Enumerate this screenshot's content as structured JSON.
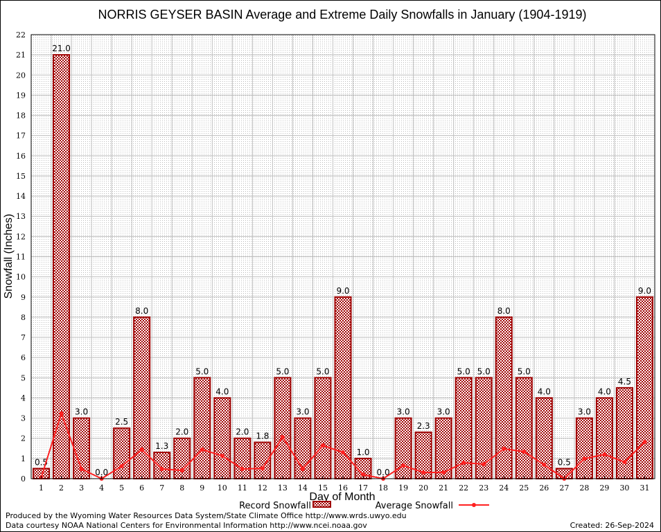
{
  "chart_data": {
    "type": "bar",
    "title": "NORRIS GEYSER BASIN Average and Extreme Daily Snowfalls in January (1904-1919)",
    "xlabel": "Day of Month",
    "ylabel": "Snowfall (Inches)",
    "ylim": [
      0,
      22
    ],
    "yticks": [
      "0",
      "1",
      "2",
      "3",
      "4",
      "5",
      "6",
      "7",
      "8",
      "9",
      "10",
      "11",
      "12",
      "13",
      "14",
      "15",
      "16",
      "17",
      "18",
      "19",
      "20",
      "21",
      "22"
    ],
    "categories": [
      "1",
      "2",
      "3",
      "4",
      "5",
      "6",
      "7",
      "8",
      "9",
      "10",
      "11",
      "12",
      "13",
      "14",
      "15",
      "16",
      "17",
      "18",
      "19",
      "20",
      "21",
      "22",
      "23",
      "24",
      "25",
      "26",
      "27",
      "28",
      "29",
      "30",
      "31"
    ],
    "grid": true,
    "legend_position": "bottom",
    "series": [
      {
        "name": "Record Snowfall",
        "type": "bar",
        "color": "#a00000",
        "values": [
          0.5,
          21.0,
          3.0,
          0.0,
          2.5,
          8.0,
          1.3,
          2.0,
          5.0,
          4.0,
          2.0,
          1.8,
          5.0,
          3.0,
          5.0,
          9.0,
          1.0,
          0.0,
          3.0,
          2.3,
          3.0,
          5.0,
          5.0,
          8.0,
          5.0,
          4.0,
          0.5,
          3.0,
          4.0,
          4.5,
          9.0
        ],
        "labels": [
          "0.5",
          "21.0",
          "3.0",
          "0.0",
          "2.5",
          "8.0",
          "1.3",
          "2.0",
          "5.0",
          "4.0",
          "2.0",
          "1.8",
          "5.0",
          "3.0",
          "5.0",
          "9.0",
          "1.0",
          "0.0",
          "3.0",
          "2.3",
          "3.0",
          "5.0",
          "5.0",
          "8.0",
          "5.0",
          "4.0",
          "0.5",
          "3.0",
          "4.0",
          "4.5",
          "9.0"
        ]
      },
      {
        "name": "Average Snowfall",
        "type": "line",
        "color": "#ff2020",
        "values": [
          0.06,
          3.23,
          0.48,
          0.0,
          0.62,
          1.44,
          0.48,
          0.41,
          1.44,
          1.13,
          0.48,
          0.51,
          2.06,
          0.48,
          1.65,
          1.3,
          0.2,
          0.0,
          0.65,
          0.31,
          0.31,
          0.79,
          0.72,
          1.48,
          1.34,
          0.69,
          0.0,
          0.99,
          1.2,
          0.82,
          1.82
        ]
      }
    ]
  },
  "footer": {
    "produced_by": "Produced by the Wyoming Water Resources Data System/State Climate Office http://www.wrds.uwyo.edu",
    "data_courtesy": "Data courtesy NOAA National Centers for Environmental Information http://www.ncei.noaa.gov",
    "created": "Created: 26-Sep-2024"
  }
}
